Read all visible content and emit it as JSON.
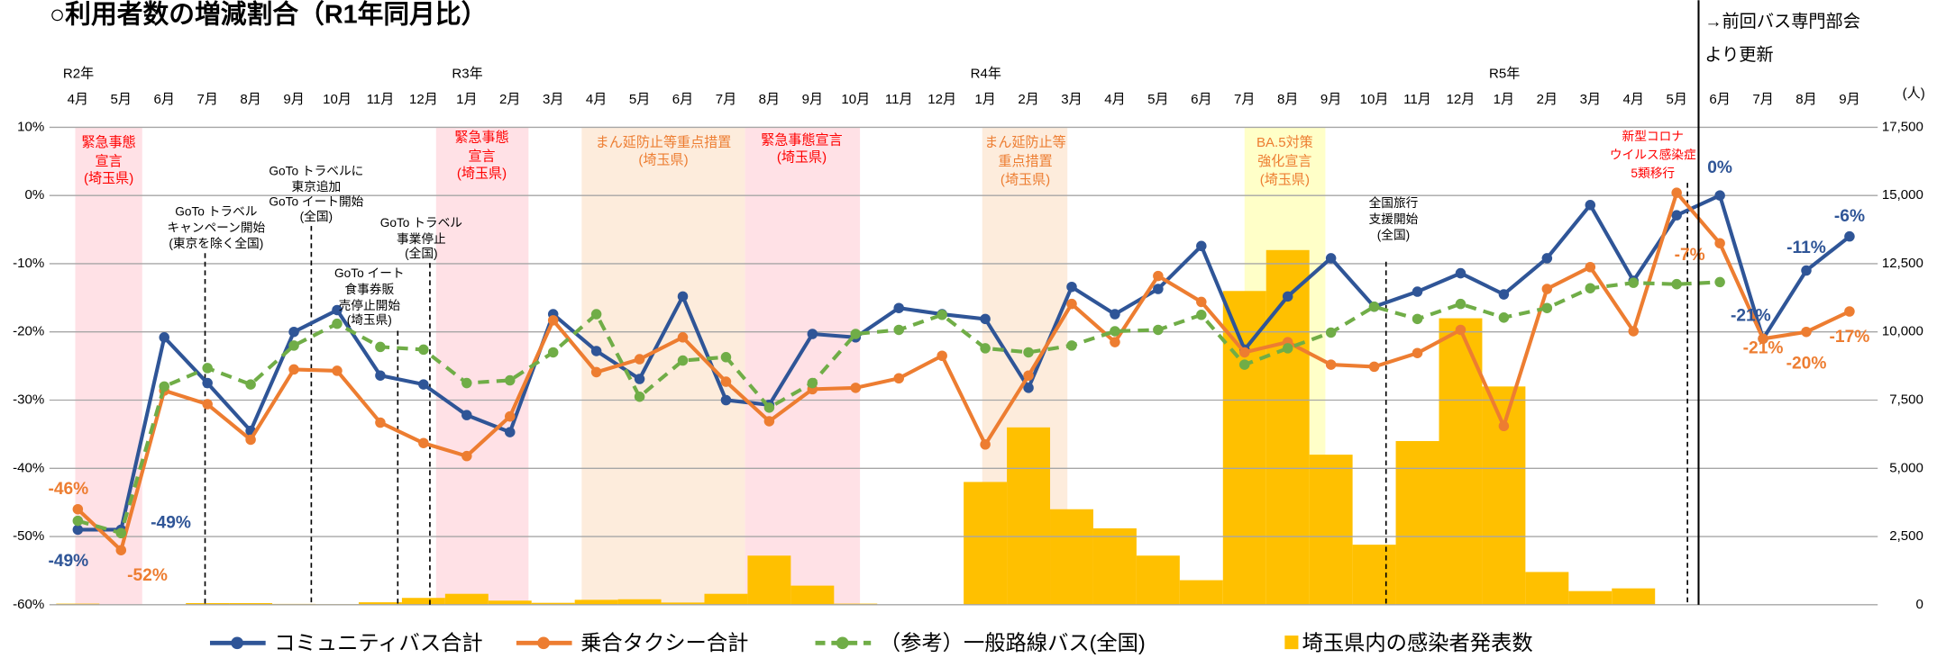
{
  "chart_data": {
    "type": "line",
    "title": "○利用者数の増減割合（R1年同月比）",
    "update_note": [
      "→前回バス専門部会",
      "より更新"
    ],
    "year_labels": [
      "R2年",
      "R3年",
      "R4年",
      "R5年"
    ],
    "categories": [
      "4月",
      "5月",
      "6月",
      "7月",
      "8月",
      "9月",
      "10月",
      "11月",
      "12月",
      "1月",
      "2月",
      "3月",
      "4月",
      "5月",
      "6月",
      "7月",
      "8月",
      "9月",
      "10月",
      "11月",
      "12月",
      "1月",
      "2月",
      "3月",
      "4月",
      "5月",
      "6月",
      "7月",
      "8月",
      "9月",
      "10月",
      "11月",
      "12月",
      "1月",
      "2月",
      "3月",
      "4月",
      "5月",
      "6月",
      "7月",
      "8月",
      "9月"
    ],
    "ylim": [
      -60,
      10
    ],
    "yticks": [
      {
        "value": 10,
        "label": "10%"
      },
      {
        "value": 0,
        "label": "0%"
      },
      {
        "value": -10,
        "label": "-10%"
      },
      {
        "value": -20,
        "label": "-20%"
      },
      {
        "value": -30,
        "label": "-30%"
      },
      {
        "value": -40,
        "label": "-40%"
      },
      {
        "value": -50,
        "label": "-50%"
      },
      {
        "value": -60,
        "label": "-60%"
      }
    ],
    "y2_unit": "(人)",
    "y2lim": [
      0,
      17500
    ],
    "y2ticks": [
      {
        "value": 17500,
        "label": "17,500"
      },
      {
        "value": 15000,
        "label": "15,000"
      },
      {
        "value": 12500,
        "label": "12,500"
      },
      {
        "value": 10000,
        "label": "10,000"
      },
      {
        "value": 7500,
        "label": "7,500"
      },
      {
        "value": 5000,
        "label": "5,000"
      },
      {
        "value": 2500,
        "label": "2,500"
      },
      0
    ],
    "grid": true,
    "series": [
      {
        "name": "コミュニティバス合計",
        "type": "line",
        "color": "#2f5597",
        "dashed": false,
        "values": [
          -49,
          -49,
          -20.8,
          -27.5,
          -34.5,
          -20,
          -16.8,
          -26.4,
          -27.7,
          -32.2,
          -34.7,
          -17.4,
          -22.8,
          -26.9,
          -14.8,
          -30,
          -30.7,
          -20.3,
          -20.8,
          -16.5,
          -17.4,
          -18.1,
          -28.2,
          -13.4,
          -17.4,
          -13.7,
          -7.4,
          -22.6,
          -14.8,
          -9.2,
          -16.3,
          -14.1,
          -11.4,
          -14.5,
          -9.2,
          -1.4,
          -12.5,
          -2.9,
          0,
          -21,
          -11,
          -6
        ],
        "value_labels": [
          "-49%",
          "-49%",
          null,
          null,
          null,
          null,
          null,
          null,
          null,
          null,
          null,
          null,
          null,
          null,
          null,
          null,
          null,
          null,
          null,
          null,
          null,
          null,
          null,
          null,
          null,
          null,
          null,
          null,
          null,
          null,
          null,
          null,
          null,
          null,
          null,
          null,
          null,
          null,
          "0%",
          "-21%",
          "-11%",
          "-6%"
        ]
      },
      {
        "name": "乗合タクシー合計",
        "type": "line",
        "color": "#ed7d31",
        "dashed": false,
        "values": [
          -46,
          -52,
          -28.6,
          -30.6,
          -35.8,
          -25.5,
          -25.7,
          -33.3,
          -36.3,
          -38.2,
          -32.4,
          -18.3,
          -25.9,
          -24,
          -20.8,
          -27.3,
          -33.1,
          -28.4,
          -28.2,
          -26.8,
          -23.5,
          -36.5,
          -26.4,
          -15.9,
          -21.5,
          -11.8,
          -15.6,
          -23,
          -21.5,
          -24.8,
          -25.1,
          -23.1,
          -19.7,
          -33.8,
          -13.7,
          -10.5,
          -19.9,
          0.4,
          -7,
          -21,
          -20,
          -17
        ],
        "value_labels": [
          "-46%",
          "-52%",
          null,
          null,
          null,
          null,
          null,
          null,
          null,
          null,
          null,
          null,
          null,
          null,
          null,
          null,
          null,
          null,
          null,
          null,
          null,
          null,
          null,
          null,
          null,
          null,
          null,
          null,
          null,
          null,
          null,
          null,
          null,
          null,
          null,
          null,
          null,
          null,
          "-7%",
          "-21%",
          "-20%",
          "-17%"
        ]
      },
      {
        "name": "（参考）一般路線バス(全国)",
        "type": "line",
        "color": "#70ad47",
        "dashed": true,
        "values": [
          -47.7,
          -49.5,
          -28,
          -25.3,
          -27.7,
          -22,
          -18.8,
          -22.2,
          -22.6,
          -27.5,
          -27.1,
          -23,
          -17.4,
          -29.5,
          -24.2,
          -23.7,
          -31.1,
          -27.5,
          -20.3,
          -19.7,
          -17.5,
          -22.4,
          -23,
          -22,
          -19.9,
          -19.7,
          -17.5,
          -24.8,
          -22.4,
          -20.1,
          -16.3,
          -18.1,
          -15.9,
          -17.9,
          -16.5,
          -13.6,
          -12.8,
          -13,
          -12.7,
          null,
          null,
          null
        ]
      },
      {
        "name": "埼玉県内の感染者発表数",
        "type": "bar",
        "axis": "y2",
        "color": "#ffc000",
        "values": [
          40,
          10,
          10,
          60,
          60,
          30,
          20,
          90,
          250,
          400,
          150,
          70,
          180,
          200,
          80,
          400,
          1800,
          700,
          40,
          5,
          10,
          4500,
          6500,
          3500,
          2800,
          1800,
          900,
          11500,
          13000,
          5500,
          2200,
          6000,
          10500,
          8000,
          1200,
          500,
          600,
          null,
          null,
          null,
          null,
          null
        ]
      }
    ],
    "periods": [
      {
        "label": [
          "緊急事態",
          "宣言",
          "(埼玉県)"
        ],
        "color": "#ffe1e6",
        "text_color": "#ff0000"
      },
      {
        "label": [
          "緊急事態",
          "宣言",
          "(埼玉県)"
        ],
        "color": "#ffe1e6",
        "text_color": "#ff0000"
      },
      {
        "label": [
          "まん延防止等重点措置",
          "(埼玉県)"
        ],
        "color": "#fdecdc",
        "text_color": "#ed7d31"
      },
      {
        "label": [
          "緊急事態宣言",
          "(埼玉県)"
        ],
        "color": "#ffe1e6",
        "text_color": "#ff0000"
      },
      {
        "label": [
          "まん延防止等",
          "重点措置",
          "(埼玉県)"
        ],
        "color": "#fdecdc",
        "text_color": "#ed7d31"
      },
      {
        "label": [
          "BA.5対策",
          "強化宣言",
          "(埼玉県)"
        ],
        "color": "#ffffc8",
        "text_color": "#ed7d31"
      }
    ],
    "events": [
      {
        "label": [
          "GoTo トラベル",
          "キャンペーン開始",
          "(東京を除く全国)"
        ],
        "text_color": "#000000"
      },
      {
        "label": [
          "GoTo トラベルに",
          "東京追加",
          "GoTo イート開始",
          "(全国)"
        ],
        "text_color": "#000000"
      },
      {
        "label": [
          "GoTo イート",
          "食事券販",
          "売停止開始",
          "(埼玉県)"
        ],
        "text_color": "#000000"
      },
      {
        "label": [
          "GoTo トラベル",
          "事業停止",
          "(全国)"
        ],
        "text_color": "#000000"
      },
      {
        "label": [
          "全国旅行",
          "支援開始",
          "(全国)"
        ],
        "text_color": "#000000"
      },
      {
        "label": [
          "新型コロナ",
          "ウイルス感染症",
          "5類移行"
        ],
        "text_color": "#ff0000"
      }
    ]
  }
}
